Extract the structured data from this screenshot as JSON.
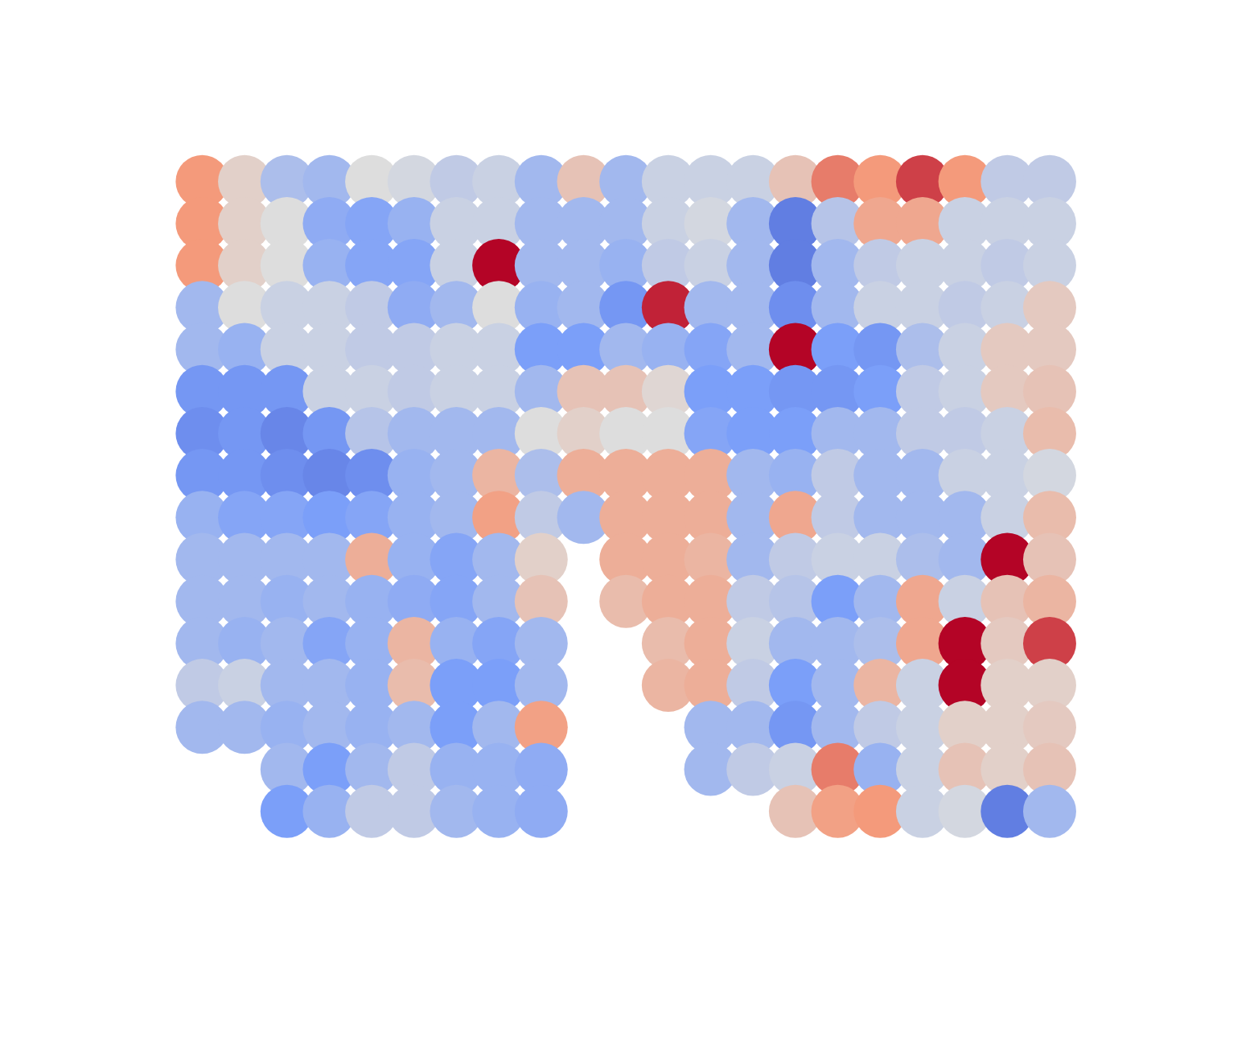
{
  "chart_data": {
    "type": "scatter",
    "tick_labels": false,
    "grid": false,
    "xlim": [
      0,
      156.4
    ],
    "ylim": [
      0,
      129.8
    ],
    "clim": [
      -1,
      1
    ],
    "x": [
      22.8,
      28.3,
      33.8,
      39.3,
      44.8,
      50.3,
      55.8,
      61.3,
      66.8,
      72.3,
      77.8,
      83.3,
      88.8,
      94.3,
      99.8,
      105.3,
      110.8,
      116.3,
      121.8,
      127.3,
      132.8
    ],
    "y": [
      109.5,
      104,
      98.5,
      93,
      87.5,
      82,
      76.5,
      71,
      65.5,
      60,
      54.5,
      49,
      43.5,
      38,
      32.5,
      27
    ],
    "values": [
      [
        0.5,
        0.1,
        -0.25,
        -0.3,
        0,
        -0.05,
        -0.15,
        -0.1,
        -0.3,
        0.2,
        -0.3,
        -0.1,
        -0.1,
        -0.1,
        0.2,
        0.6,
        0.5,
        0.8,
        0.5,
        -0.15,
        -0.15
      ],
      [
        0.5,
        0.1,
        0,
        -0.4,
        -0.45,
        -0.35,
        -0.1,
        -0.1,
        -0.3,
        -0.3,
        -0.3,
        -0.1,
        -0.05,
        -0.3,
        -0.7,
        -0.2,
        0.4,
        0.4,
        -0.1,
        -0.1,
        -0.1
      ],
      [
        0.5,
        0.1,
        0,
        -0.35,
        -0.45,
        -0.45,
        -0.1,
        1,
        -0.3,
        -0.3,
        -0.35,
        -0.15,
        -0.1,
        -0.3,
        -0.7,
        -0.3,
        -0.15,
        -0.1,
        -0.1,
        -0.15,
        -0.1
      ],
      [
        -0.3,
        0,
        -0.1,
        -0.1,
        -0.15,
        -0.4,
        -0.3,
        0,
        -0.35,
        -0.3,
        -0.55,
        0.9,
        -0.3,
        -0.3,
        -0.6,
        -0.3,
        -0.1,
        -0.1,
        -0.15,
        -0.1,
        0.15
      ],
      [
        -0.3,
        -0.35,
        -0.1,
        -0.1,
        -0.15,
        -0.15,
        -0.1,
        -0.1,
        -0.5,
        -0.5,
        -0.3,
        -0.35,
        -0.45,
        -0.3,
        1,
        -0.5,
        -0.55,
        -0.25,
        -0.1,
        0.15,
        0.15
      ],
      [
        -0.55,
        -0.55,
        -0.55,
        -0.1,
        -0.1,
        -0.15,
        -0.1,
        -0.1,
        -0.3,
        0.2,
        0.2,
        0.05,
        -0.5,
        -0.5,
        -0.55,
        -0.55,
        -0.5,
        -0.15,
        -0.1,
        0.15,
        0.2
      ],
      [
        -0.6,
        -0.55,
        -0.65,
        -0.55,
        -0.2,
        -0.3,
        -0.3,
        -0.3,
        0,
        0.1,
        0,
        0,
        -0.45,
        -0.5,
        -0.5,
        -0.3,
        -0.3,
        -0.15,
        -0.15,
        -0.1,
        0.25
      ],
      [
        -0.55,
        -0.55,
        -0.6,
        -0.65,
        -0.6,
        -0.35,
        -0.3,
        0.3,
        -0.25,
        0.35,
        0.35,
        0.35,
        0.35,
        -0.3,
        -0.35,
        -0.15,
        -0.3,
        -0.3,
        -0.1,
        -0.1,
        -0.05
      ],
      [
        -0.35,
        -0.45,
        -0.45,
        -0.5,
        -0.45,
        -0.35,
        -0.3,
        0.45,
        -0.15,
        -0.3,
        0.35,
        0.35,
        0.35,
        -0.3,
        0.4,
        -0.15,
        -0.3,
        -0.3,
        -0.3,
        -0.1,
        0.25
      ],
      [
        -0.3,
        -0.3,
        -0.3,
        -0.3,
        0.35,
        -0.35,
        -0.45,
        -0.3,
        0.1,
        null,
        0.35,
        0.35,
        0.3,
        -0.3,
        -0.15,
        -0.1,
        -0.1,
        -0.25,
        -0.3,
        1,
        0.2
      ],
      [
        -0.3,
        -0.3,
        -0.35,
        -0.3,
        -0.35,
        -0.4,
        -0.45,
        -0.3,
        0.2,
        null,
        0.25,
        0.35,
        0.35,
        -0.15,
        -0.2,
        -0.5,
        -0.3,
        0.4,
        -0.1,
        0.2,
        0.3
      ],
      [
        -0.3,
        -0.35,
        -0.3,
        -0.45,
        -0.35,
        0.3,
        -0.35,
        -0.45,
        -0.3,
        null,
        null,
        0.25,
        0.35,
        -0.1,
        -0.3,
        -0.3,
        -0.25,
        0.4,
        1,
        0.15,
        0.8
      ],
      [
        -0.15,
        -0.1,
        -0.3,
        -0.3,
        -0.35,
        0.25,
        -0.5,
        -0.5,
        -0.3,
        null,
        null,
        0.3,
        0.35,
        -0.15,
        -0.5,
        -0.3,
        0.3,
        -0.1,
        1,
        0.1,
        0.1
      ],
      [
        -0.3,
        -0.3,
        -0.35,
        -0.3,
        -0.35,
        -0.3,
        -0.5,
        -0.3,
        0.45,
        null,
        null,
        null,
        -0.3,
        -0.3,
        -0.55,
        -0.3,
        -0.15,
        -0.1,
        0.1,
        0.1,
        0.15
      ],
      [
        null,
        null,
        -0.3,
        -0.5,
        -0.3,
        -0.15,
        -0.35,
        -0.35,
        -0.4,
        null,
        null,
        null,
        -0.3,
        -0.15,
        -0.1,
        0.6,
        -0.35,
        -0.1,
        0.2,
        0.1,
        0.2
      ],
      [
        null,
        null,
        -0.5,
        -0.35,
        -0.15,
        -0.15,
        -0.3,
        -0.35,
        -0.4,
        null,
        null,
        null,
        null,
        null,
        0.2,
        0.45,
        0.5,
        -0.1,
        -0.05,
        -0.7,
        -0.3
      ]
    ]
  }
}
